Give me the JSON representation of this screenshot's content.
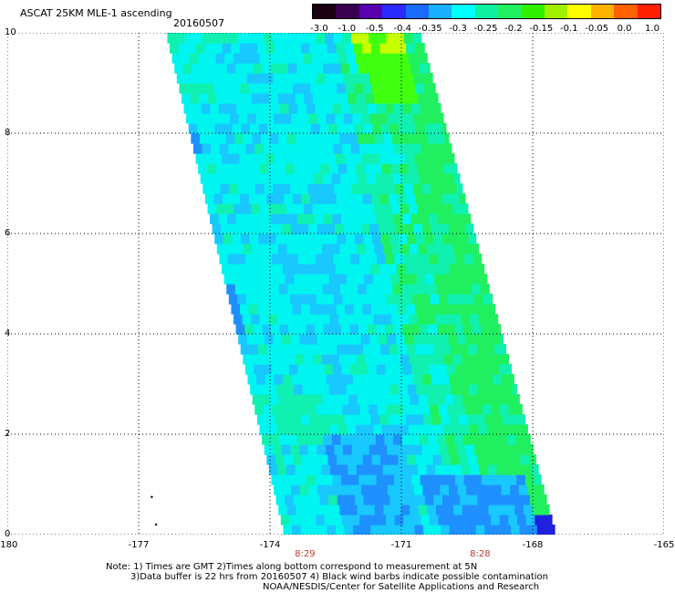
{
  "title": "ASCAT 25KM MLE-1 ascending",
  "date": "20160507",
  "colorbar": {
    "labels": [
      "-3.0",
      "-1.0",
      "-0.5",
      "-0.4",
      "-0.35",
      "-0.3",
      "-0.25",
      "-0.2",
      "-0.15",
      "-0.1",
      "-0.05",
      "0.0",
      "1.0"
    ],
    "colors": [
      "#1a0010",
      "#3a0050",
      "#5a00b0",
      "#2a2aff",
      "#1a6aff",
      "#18b0ff",
      "#00ffff",
      "#10f0a0",
      "#20f060",
      "#30f000",
      "#a0f000",
      "#ffff00",
      "#ffb000",
      "#ff6000",
      "#ff2000"
    ]
  },
  "axes": {
    "x_ticks": [
      "-180",
      "-177",
      "-174",
      "-171",
      "-168",
      "-165"
    ],
    "y_ticks": [
      "0",
      "2",
      "4",
      "6",
      "8",
      "10"
    ],
    "time_labels": [
      "8:29",
      "8:28"
    ]
  },
  "notes": [
    "Note: 1) Times are GMT 2)Times along bottom correspond to measurement at 5N",
    "3)Data buffer is 22 hrs from 20160507 4) Black wind barbs indicate possible contamination",
    "NOAA/NESDIS/Center for Satellite Applications and Research"
  ],
  "swath": {
    "lon_range": [
      -180,
      -165
    ],
    "lat_range": [
      0,
      10
    ],
    "west_edge": [
      [
        0,
        -173.7
      ],
      [
        10,
        -176.4
      ]
    ],
    "east_edge": [
      [
        0,
        -167.5
      ],
      [
        10,
        -170.6
      ]
    ],
    "colors": {
      "deep_blue": "#2020e0",
      "blue": "#1e90ff",
      "light_blue": "#18c8ff",
      "cyan": "#00f5f0",
      "aqua_green": "#10f0b0",
      "green": "#20f060",
      "bright_green": "#40ff10",
      "yellow_green": "#c8ff00"
    }
  }
}
